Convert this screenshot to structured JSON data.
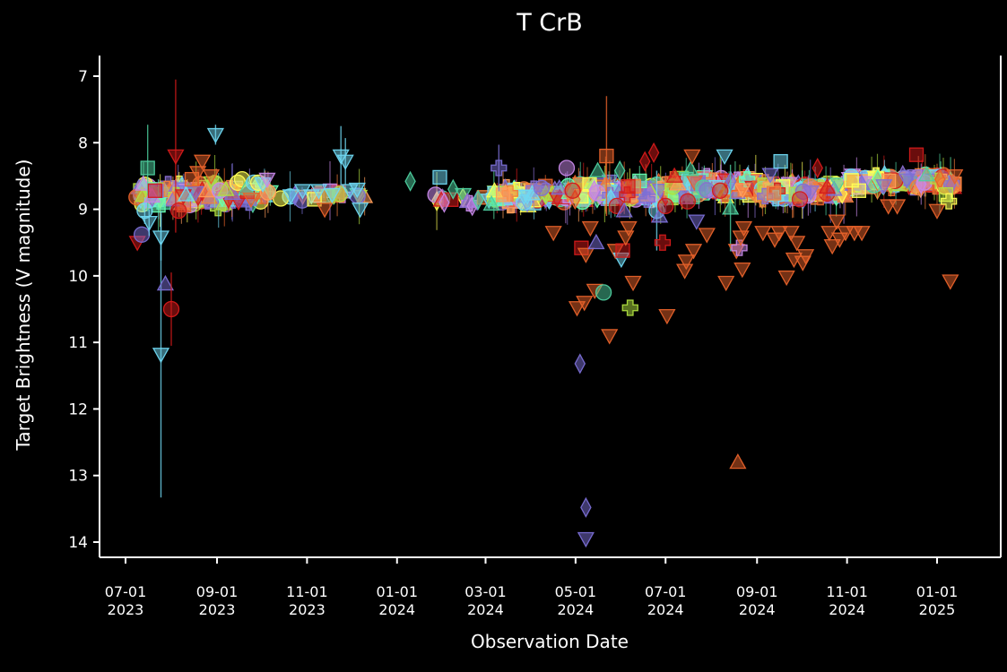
{
  "chart_data": {
    "type": "scatter",
    "title": "T CrB",
    "xlabel": "Observation Date",
    "ylabel": "Target Brightness (V magnitude)",
    "y_inverted": true,
    "ylim": [
      6.7,
      14.25
    ],
    "y_ticks": [
      7,
      8,
      9,
      10,
      11,
      12,
      13,
      14
    ],
    "x_range_days": [
      -12,
      570
    ],
    "x_ticks": [
      {
        "day": 0,
        "line1": "07-01",
        "line2": "2023"
      },
      {
        "day": 62,
        "line1": "09-01",
        "line2": "2023"
      },
      {
        "day": 123,
        "line1": "11-01",
        "line2": "2023"
      },
      {
        "day": 184,
        "line1": "01-01",
        "line2": "2024"
      },
      {
        "day": 244,
        "line1": "03-01",
        "line2": "2024"
      },
      {
        "day": 305,
        "line1": "05-01",
        "line2": "2024"
      },
      {
        "day": 366,
        "line1": "07-01",
        "line2": "2024"
      },
      {
        "day": 428,
        "line1": "09-01",
        "line2": "2024"
      },
      {
        "day": 489,
        "line1": "11-01",
        "line2": "2024"
      },
      {
        "day": 550,
        "line1": "01-01",
        "line2": "2025"
      }
    ],
    "x_unit": "days since 2023-07-01",
    "palette": [
      "#e8622a",
      "#d41a1a",
      "#4ecf9f",
      "#6fd8f2",
      "#ffff55",
      "#7b6fd6",
      "#c788e8",
      "#f27b3a",
      "#8a6fd0",
      "#66ffb2",
      "#b0e040",
      "#ff9d5a"
    ],
    "marker_types": [
      "circle",
      "square",
      "triangle-up",
      "triangle-down",
      "diamond",
      "plus"
    ],
    "band_segments": [
      {
        "start": 7,
        "end": 96,
        "mag": 8.78,
        "spread": 0.16,
        "count": 170
      },
      {
        "start": 96,
        "end": 162,
        "mag": 8.78,
        "spread": 0.08,
        "count": 22
      },
      {
        "start": 198,
        "end": 246,
        "mag": 8.85,
        "spread": 0.08,
        "count": 12
      },
      {
        "start": 246,
        "end": 300,
        "mag": 8.8,
        "spread": 0.12,
        "count": 110
      },
      {
        "start": 300,
        "end": 370,
        "mag": 8.74,
        "spread": 0.13,
        "count": 200
      },
      {
        "start": 370,
        "end": 430,
        "mag": 8.66,
        "spread": 0.13,
        "count": 190
      },
      {
        "start": 430,
        "end": 490,
        "mag": 8.72,
        "spread": 0.12,
        "count": 180
      },
      {
        "start": 490,
        "end": 555,
        "mag": 8.58,
        "spread": 0.1,
        "count": 180
      },
      {
        "start": 555,
        "end": 562,
        "mag": 8.62,
        "spread": 0.08,
        "count": 15
      }
    ],
    "points": [
      {
        "x": 8,
        "y": 9.5,
        "m": "triangle-down",
        "c": 1
      },
      {
        "x": 11,
        "y": 9.38,
        "m": "circle",
        "c": 5
      },
      {
        "x": 12,
        "y": 8.62,
        "m": "triangle-up",
        "c": 6
      },
      {
        "x": 13,
        "y": 9.02,
        "m": "circle",
        "c": 3,
        "err": 0.2
      },
      {
        "x": 15,
        "y": 8.38,
        "m": "square",
        "c": 2,
        "err": 0.65
      },
      {
        "x": 16,
        "y": 9.2,
        "m": "triangle-down",
        "c": 3,
        "err": 0.2
      },
      {
        "x": 18,
        "y": 8.8,
        "m": "triangle-up",
        "c": 6
      },
      {
        "x": 20,
        "y": 8.72,
        "m": "square",
        "c": 1
      },
      {
        "x": 24,
        "y": 9.42,
        "m": "triangle-down",
        "c": 3,
        "err": 0.35
      },
      {
        "x": 24,
        "y": 11.18,
        "m": "triangle-down",
        "c": 3,
        "err": 2.15
      },
      {
        "x": 27,
        "y": 10.12,
        "m": "triangle-up",
        "c": 5
      },
      {
        "x": 31,
        "y": 10.5,
        "m": "circle",
        "c": 1,
        "err": 0.55
      },
      {
        "x": 34,
        "y": 8.2,
        "m": "triangle-down",
        "c": 1,
        "err": 1.15
      },
      {
        "x": 36,
        "y": 9.02,
        "m": "circle",
        "c": 1
      },
      {
        "x": 41,
        "y": 8.78,
        "m": "triangle-up",
        "c": 3
      },
      {
        "x": 45,
        "y": 8.55,
        "m": "square",
        "c": 0
      },
      {
        "x": 49,
        "y": 8.45,
        "m": "triangle-down",
        "c": 0
      },
      {
        "x": 52,
        "y": 8.28,
        "m": "triangle-down",
        "c": 0
      },
      {
        "x": 55,
        "y": 8.72,
        "m": "triangle-up",
        "c": 11
      },
      {
        "x": 58,
        "y": 8.5,
        "m": "triangle-down",
        "c": 0
      },
      {
        "x": 61,
        "y": 7.88,
        "m": "triangle-down",
        "c": 3,
        "err": 0.15
      },
      {
        "x": 64,
        "y": 8.72,
        "m": "circle",
        "c": 6
      },
      {
        "x": 68,
        "y": 8.7,
        "m": "triangle-up",
        "c": 10
      },
      {
        "x": 76,
        "y": 8.6,
        "m": "circle",
        "c": 4
      },
      {
        "x": 79,
        "y": 8.55,
        "m": "circle",
        "c": 4
      },
      {
        "x": 82,
        "y": 8.68,
        "m": "triangle-up",
        "c": 2
      },
      {
        "x": 85,
        "y": 8.85,
        "m": "triangle-down",
        "c": 0
      },
      {
        "x": 87,
        "y": 8.6,
        "m": "circle",
        "c": 3
      },
      {
        "x": 90,
        "y": 8.6,
        "m": "circle",
        "c": 4
      },
      {
        "x": 93,
        "y": 8.62,
        "m": "triangle-down",
        "c": 3
      },
      {
        "x": 96,
        "y": 8.55,
        "m": "triangle-down",
        "c": 6
      },
      {
        "x": 112,
        "y": 8.8,
        "m": "triangle-down",
        "c": 3
      },
      {
        "x": 120,
        "y": 8.72,
        "m": "triangle-down",
        "c": 3
      },
      {
        "x": 126,
        "y": 8.8,
        "m": "triangle-down",
        "c": 3
      },
      {
        "x": 128,
        "y": 8.85,
        "m": "square",
        "c": 4
      },
      {
        "x": 131,
        "y": 8.72,
        "m": "triangle-down",
        "c": 3
      },
      {
        "x": 135,
        "y": 9.0,
        "m": "triangle-down",
        "c": 0
      },
      {
        "x": 140,
        "y": 8.78,
        "m": "triangle-down",
        "c": 3
      },
      {
        "x": 146,
        "y": 8.2,
        "m": "triangle-down",
        "c": 3,
        "err": 0.45
      },
      {
        "x": 149,
        "y": 8.28,
        "m": "triangle-down",
        "c": 3,
        "err": 0.35
      },
      {
        "x": 152,
        "y": 8.72,
        "m": "triangle-down",
        "c": 3
      },
      {
        "x": 157,
        "y": 8.7,
        "m": "triangle-down",
        "c": 3
      },
      {
        "x": 159,
        "y": 9.0,
        "m": "triangle-down",
        "c": 3
      },
      {
        "x": 193,
        "y": 8.58,
        "m": "diamond",
        "c": 2
      },
      {
        "x": 213,
        "y": 8.52,
        "m": "square",
        "c": 3
      },
      {
        "x": 214,
        "y": 8.86,
        "m": "triangle-up",
        "c": 1
      },
      {
        "x": 216,
        "y": 8.9,
        "m": "diamond",
        "c": 6
      },
      {
        "x": 222,
        "y": 8.7,
        "m": "diamond",
        "c": 2
      },
      {
        "x": 235,
        "y": 8.95,
        "m": "diamond",
        "c": 6
      },
      {
        "x": 239,
        "y": 8.86,
        "m": "diamond",
        "c": 2
      },
      {
        "x": 248,
        "y": 8.92,
        "m": "triangle-up",
        "c": 2
      },
      {
        "x": 253,
        "y": 8.38,
        "m": "plus",
        "c": 5,
        "err": 0.35
      },
      {
        "x": 270,
        "y": 8.9,
        "m": "circle",
        "c": 3
      },
      {
        "x": 282,
        "y": 8.68,
        "m": "circle",
        "c": 5
      },
      {
        "x": 290,
        "y": 9.35,
        "m": "triangle-down",
        "c": 0
      },
      {
        "x": 294,
        "y": 8.68,
        "m": "triangle-up",
        "c": 5
      },
      {
        "x": 299,
        "y": 8.38,
        "m": "circle",
        "c": 6
      },
      {
        "x": 303,
        "y": 8.72,
        "m": "circle",
        "c": 1
      },
      {
        "x": 306,
        "y": 10.48,
        "m": "triangle-down",
        "c": 0
      },
      {
        "x": 308,
        "y": 11.32,
        "m": "diamond",
        "c": 5
      },
      {
        "x": 309,
        "y": 9.58,
        "m": "square",
        "c": 1
      },
      {
        "x": 311,
        "y": 10.4,
        "m": "triangle-down",
        "c": 0
      },
      {
        "x": 312,
        "y": 9.68,
        "m": "triangle-down",
        "c": 0
      },
      {
        "x": 312,
        "y": 13.48,
        "m": "diamond",
        "c": 5
      },
      {
        "x": 312,
        "y": 13.95,
        "m": "triangle-down",
        "c": 5
      },
      {
        "x": 315,
        "y": 9.28,
        "m": "triangle-down",
        "c": 0
      },
      {
        "x": 318,
        "y": 10.22,
        "m": "triangle-down",
        "c": 0
      },
      {
        "x": 319,
        "y": 9.5,
        "m": "triangle-up",
        "c": 5
      },
      {
        "x": 320,
        "y": 8.42,
        "m": "triangle-up",
        "c": 2
      },
      {
        "x": 324,
        "y": 10.25,
        "m": "circle",
        "c": 2
      },
      {
        "x": 326,
        "y": 8.2,
        "m": "square",
        "c": 0,
        "err": 0.9
      },
      {
        "x": 328,
        "y": 10.9,
        "m": "triangle-down",
        "c": 0
      },
      {
        "x": 332,
        "y": 9.62,
        "m": "triangle-down",
        "c": 0
      },
      {
        "x": 333,
        "y": 8.95,
        "m": "circle",
        "c": 1
      },
      {
        "x": 335,
        "y": 8.42,
        "m": "diamond",
        "c": 2
      },
      {
        "x": 336,
        "y": 9.75,
        "m": "triangle-down",
        "c": 3
      },
      {
        "x": 337,
        "y": 9.62,
        "m": "square",
        "c": 1
      },
      {
        "x": 338,
        "y": 9.02,
        "m": "triangle-up",
        "c": 5
      },
      {
        "x": 339,
        "y": 9.42,
        "m": "triangle-down",
        "c": 0
      },
      {
        "x": 340,
        "y": 8.78,
        "m": "plus",
        "c": 1
      },
      {
        "x": 341,
        "y": 9.28,
        "m": "triangle-down",
        "c": 0
      },
      {
        "x": 342,
        "y": 10.48,
        "m": "plus",
        "c": 10
      },
      {
        "x": 344,
        "y": 10.1,
        "m": "triangle-down",
        "c": 0
      },
      {
        "x": 352,
        "y": 8.28,
        "m": "diamond",
        "c": 1
      },
      {
        "x": 358,
        "y": 8.15,
        "m": "diamond",
        "c": 1
      },
      {
        "x": 360,
        "y": 9.02,
        "m": "circle",
        "c": 3,
        "err": 0.6
      },
      {
        "x": 362,
        "y": 9.1,
        "m": "triangle-up",
        "c": 5
      },
      {
        "x": 364,
        "y": 9.5,
        "m": "plus",
        "c": 1
      },
      {
        "x": 366,
        "y": 8.95,
        "m": "circle",
        "c": 1
      },
      {
        "x": 367,
        "y": 10.6,
        "m": "triangle-down",
        "c": 0
      },
      {
        "x": 372,
        "y": 8.5,
        "m": "triangle-up",
        "c": 1
      },
      {
        "x": 379,
        "y": 9.92,
        "m": "triangle-down",
        "c": 0
      },
      {
        "x": 380,
        "y": 9.78,
        "m": "triangle-down",
        "c": 0
      },
      {
        "x": 381,
        "y": 8.88,
        "m": "circle",
        "c": 1
      },
      {
        "x": 383,
        "y": 8.4,
        "m": "triangle-up",
        "c": 2
      },
      {
        "x": 384,
        "y": 8.2,
        "m": "triangle-down",
        "c": 0
      },
      {
        "x": 385,
        "y": 9.62,
        "m": "triangle-down",
        "c": 0
      },
      {
        "x": 387,
        "y": 9.18,
        "m": "triangle-down",
        "c": 5
      },
      {
        "x": 394,
        "y": 9.38,
        "m": "triangle-down",
        "c": 0
      },
      {
        "x": 403,
        "y": 8.72,
        "m": "circle",
        "c": 1
      },
      {
        "x": 406,
        "y": 8.2,
        "m": "triangle-down",
        "c": 3
      },
      {
        "x": 407,
        "y": 10.1,
        "m": "triangle-down",
        "c": 0
      },
      {
        "x": 410,
        "y": 8.98,
        "m": "triangle-up",
        "c": 2,
        "err": 0.65
      },
      {
        "x": 414,
        "y": 9.62,
        "m": "triangle-down",
        "c": 0
      },
      {
        "x": 415,
        "y": 12.8,
        "m": "triangle-up",
        "c": 0
      },
      {
        "x": 416,
        "y": 9.58,
        "m": "plus",
        "c": 6
      },
      {
        "x": 417,
        "y": 9.42,
        "m": "triangle-down",
        "c": 0
      },
      {
        "x": 418,
        "y": 9.9,
        "m": "triangle-down",
        "c": 0
      },
      {
        "x": 419,
        "y": 9.28,
        "m": "triangle-down",
        "c": 0
      },
      {
        "x": 432,
        "y": 9.35,
        "m": "triangle-down",
        "c": 0
      },
      {
        "x": 437,
        "y": 8.48,
        "m": "triangle-down",
        "c": 5
      },
      {
        "x": 440,
        "y": 9.45,
        "m": "triangle-down",
        "c": 0
      },
      {
        "x": 443,
        "y": 9.35,
        "m": "triangle-down",
        "c": 0
      },
      {
        "x": 444,
        "y": 8.28,
        "m": "square",
        "c": 3
      },
      {
        "x": 448,
        "y": 10.02,
        "m": "triangle-down",
        "c": 0
      },
      {
        "x": 451,
        "y": 9.35,
        "m": "triangle-down",
        "c": 0
      },
      {
        "x": 453,
        "y": 9.75,
        "m": "triangle-down",
        "c": 0
      },
      {
        "x": 455,
        "y": 9.5,
        "m": "triangle-down",
        "c": 0
      },
      {
        "x": 457,
        "y": 8.85,
        "m": "circle",
        "c": 1
      },
      {
        "x": 459,
        "y": 9.8,
        "m": "triangle-down",
        "c": 0
      },
      {
        "x": 461,
        "y": 9.7,
        "m": "triangle-down",
        "c": 0
      },
      {
        "x": 469,
        "y": 8.38,
        "m": "diamond",
        "c": 1
      },
      {
        "x": 477,
        "y": 9.35,
        "m": "triangle-down",
        "c": 0
      },
      {
        "x": 479,
        "y": 9.55,
        "m": "triangle-down",
        "c": 0
      },
      {
        "x": 482,
        "y": 9.18,
        "m": "triangle-down",
        "c": 0
      },
      {
        "x": 484,
        "y": 9.45,
        "m": "triangle-down",
        "c": 0
      },
      {
        "x": 488,
        "y": 9.35,
        "m": "triangle-down",
        "c": 0
      },
      {
        "x": 494,
        "y": 9.35,
        "m": "triangle-down",
        "c": 0
      },
      {
        "x": 497,
        "y": 8.72,
        "m": "square",
        "c": 4
      },
      {
        "x": 499,
        "y": 9.35,
        "m": "triangle-down",
        "c": 0
      },
      {
        "x": 514,
        "y": 8.65,
        "m": "triangle-down",
        "c": 5
      },
      {
        "x": 517,
        "y": 8.95,
        "m": "triangle-down",
        "c": 0
      },
      {
        "x": 523,
        "y": 8.95,
        "m": "triangle-down",
        "c": 0
      },
      {
        "x": 536,
        "y": 8.18,
        "m": "square",
        "c": 1
      },
      {
        "x": 543,
        "y": 8.48,
        "m": "triangle-up",
        "c": 2
      },
      {
        "x": 550,
        "y": 9.02,
        "m": "triangle-down",
        "c": 0
      },
      {
        "x": 552,
        "y": 8.55,
        "m": "diamond",
        "c": 0
      },
      {
        "x": 556,
        "y": 8.78,
        "m": "square",
        "c": 10
      },
      {
        "x": 558,
        "y": 8.88,
        "m": "plus",
        "c": 4
      },
      {
        "x": 559,
        "y": 10.08,
        "m": "triangle-down",
        "c": 0
      },
      {
        "x": 562,
        "y": 8.5,
        "m": "triangle-down",
        "c": 0
      }
    ]
  }
}
